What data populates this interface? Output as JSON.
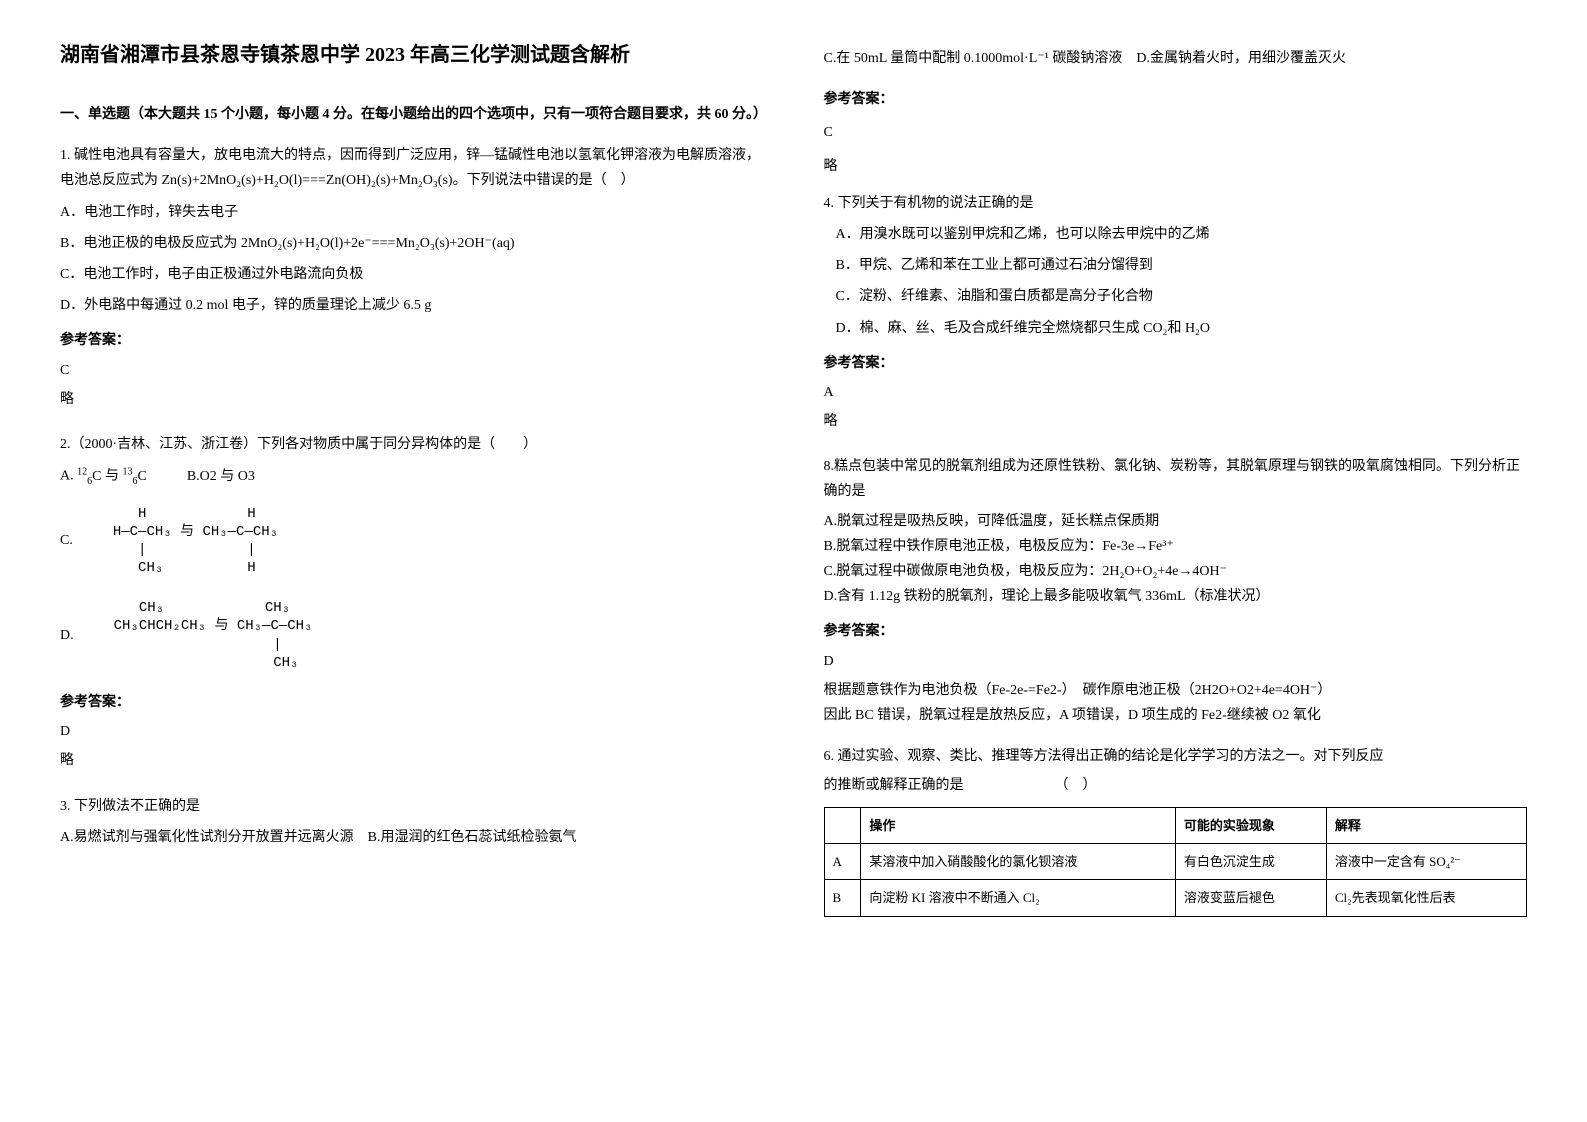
{
  "title": "湖南省湘潭市县茶恩寺镇茶恩中学 2023 年高三化学测试题含解析",
  "section1_header": "一、单选题（本大题共 15 个小题，每小题 4 分。在每小题给出的四个选项中，只有一项符合题目要求，共 60 分。）",
  "q1": {
    "text": "1. 碱性电池具有容量大，放电电流大的特点，因而得到广泛应用，锌—锰碱性电池以氢氧化钾溶液为电解质溶液，电池总反应式为 Zn(s)+2MnO₂(s)+H₂O(l)===Zn(OH)₂(s)+Mn₂O₃(s)。下列说法中错误的是（　）",
    "optA": "A．电池工作时，锌失去电子",
    "optB": "B．电池正极的电极反应式为 2MnO₂(s)+H₂O(l)+2e⁻===Mn₂O₃(s)+2OH⁻(aq)",
    "optC": "C．电池工作时，电子由正极通过外电路流向负极",
    "optD": "D．外电路中每通过 0.2 mol 电子，锌的质量理论上减少 6.5 g",
    "answer_label": "参考答案：",
    "answer": "C",
    "brief": "略"
  },
  "q2": {
    "text": "2.（2000·吉林、江苏、浙江卷）下列各对物质中属于同分异构体的是（　　）",
    "optA_pre": "A.",
    "optA_mid": "与",
    "optB": "B.O2 与 O3",
    "optC_pre": "C.",
    "optD_pre": "D.",
    "answer_label": "参考答案：",
    "answer": "D",
    "brief": "略"
  },
  "q3": {
    "text": "3. 下列做法不正确的是",
    "optA": "A.易燃试剂与强氧化性试剂分开放置并远离火源",
    "optB": "B.用湿润的红色石蕊试纸检验氨气",
    "optC": "C.在 50mL 量筒中配制 0.1000mol·L⁻¹ 碳酸钠溶液",
    "optD": "D.金属钠着火时，用细沙覆盖灭火",
    "answer_label": "参考答案：",
    "answer": "C",
    "brief": "略"
  },
  "q4": {
    "text": "4. 下列关于有机物的说法正确的是",
    "optA": "A．用溴水既可以鉴别甲烷和乙烯，也可以除去甲烷中的乙烯",
    "optB": "B．甲烷、乙烯和苯在工业上都可通过石油分馏得到",
    "optC": "C．淀粉、纤维素、油脂和蛋白质都是高分子化合物",
    "optD": "D．棉、麻、丝、毛及合成纤维完全燃烧都只生成 CO₂和 H₂O",
    "answer_label": "参考答案：",
    "answer": "A",
    "brief": "略"
  },
  "q8": {
    "text": "8.糕点包装中常见的脱氧剂组成为还原性铁粉、氯化钠、炭粉等，其脱氧原理与钢铁的吸氧腐蚀相同。下列分析正确的是",
    "optA": "A.脱氧过程是吸热反映，可降低温度，延长糕点保质期",
    "optB": "B.脱氧过程中铁作原电池正极，电极反应为：Fe-3e→Fe³⁺",
    "optC": "C.脱氧过程中碳做原电池负极，电极反应为：2H₂O+O₂+4e→4OH⁻",
    "optD": "D.含有 1.12g 铁粉的脱氧剂，理论上最多能吸收氧气 336mL（标准状况）",
    "answer_label": "参考答案：",
    "answer": "D",
    "explain1": "根据题意铁作为电池负极（Fe-2e-=Fe2-）　碳作原电池正极（2H2O+O2+4e=4OH⁻）",
    "explain2": "因此 BC 错误，脱氧过程是放热反应，A 项错误，D 项生成的 Fe2-继续被 O2 氧化"
  },
  "q6": {
    "text1": "6. 通过实验、观察、类比、推理等方法得出正确的结论是化学学习的方法之一。对下列反应",
    "text2": "的推断或解释正确的是　　　　　　　（　）",
    "table": {
      "headers": [
        "",
        "操作",
        "可能的实验现象",
        "解释"
      ],
      "rows": [
        [
          "A",
          "某溶液中加入硝酸酸化的氯化钡溶液",
          "有白色沉淀生成",
          "溶液中一定含有 SO₄²⁻"
        ],
        [
          "B",
          "向淀粉 KI 溶液中不断通入 Cl₂",
          "溶液变蓝后褪色",
          "Cl₂先表现氧化性后表"
        ]
      ]
    }
  }
}
